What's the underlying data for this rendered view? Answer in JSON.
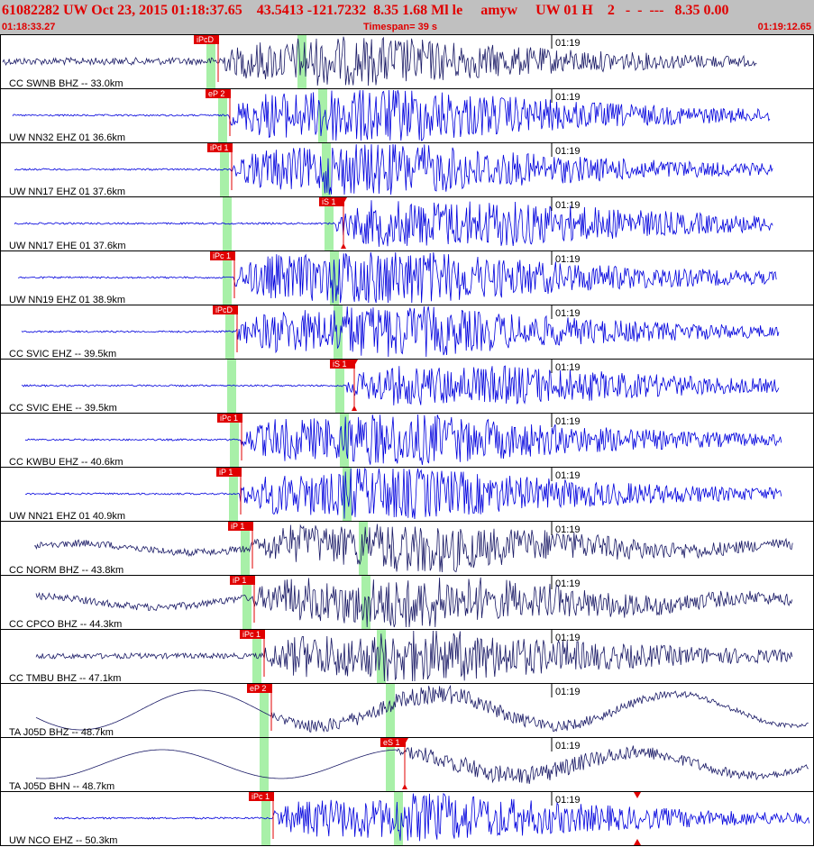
{
  "header": {
    "line1": "61082282 UW Oct 23, 2015 01:18:37.65    43.5413 -121.7232  8.35 1.68 Ml le     amyw     UW 01 H    2   -  -  ---   8.35 0.00",
    "start_time": "01:18:33.27",
    "timespan": "Timespan=  39 s",
    "end_time": "01:19:12.65"
  },
  "tick_label": "01:19",
  "colors": {
    "pick": "#e00000",
    "green_band": "#a8f0a8",
    "trace_blue": "#0000dd",
    "trace_navy": "#1a1a66"
  },
  "traces": [
    {
      "label": "CC SWNB BHZ -- 33.0km",
      "pick": "iPcD",
      "color": "navy",
      "p": 229,
      "s": 330,
      "xs": 3,
      "xe": 840,
      "amp": 22,
      "pre": 4,
      "lf": 0
    },
    {
      "label": "UW NN32 EHZ 01 36.6km",
      "pick": "eP 2",
      "color": "blue",
      "p": 242,
      "s": 353,
      "xs": 14,
      "xe": 855,
      "amp": 26,
      "pre": 1,
      "lf": 0
    },
    {
      "label": "UW NN17 EHZ 01 37.6km",
      "pick": "iPd 1",
      "color": "blue",
      "p": 244,
      "s": 357,
      "xs": 16,
      "xe": 858,
      "amp": 24,
      "pre": 1,
      "lf": 0
    },
    {
      "label": "UW NN17 EHE 01 37.6km",
      "pick": "iS 1",
      "color": "blue",
      "p": 247,
      "s": 360,
      "xs": 16,
      "xe": 858,
      "amp": 26,
      "pre": 1,
      "lf": 0,
      "spick": true
    },
    {
      "label": "UW NN19 EHZ 01 38.9km",
      "pick": "iPc 1",
      "color": "blue",
      "p": 247,
      "s": 366,
      "xs": 20,
      "xe": 862,
      "amp": 26,
      "pre": 1,
      "lf": 0
    },
    {
      "label": "CC SVIC EHZ -- 39.5km",
      "pick": "iPcD",
      "color": "blue",
      "p": 250,
      "s": 370,
      "xs": 24,
      "xe": 865,
      "amp": 24,
      "pre": 1,
      "lf": 0
    },
    {
      "label": "CC SVIC EHE -- 39.5km",
      "pick": "iS 1",
      "color": "blue",
      "p": 252,
      "s": 372,
      "xs": 24,
      "xe": 865,
      "amp": 22,
      "pre": 1,
      "lf": 0,
      "spick": true
    },
    {
      "label": "CC KWBU EHZ -- 40.6km",
      "pick": "iPc 1",
      "color": "blue",
      "p": 255,
      "s": 377,
      "xs": 28,
      "xe": 868,
      "amp": 24,
      "pre": 1,
      "lf": 0
    },
    {
      "label": "UW NN21 EHZ 01 40.9km",
      "pick": "iP 1",
      "color": "blue",
      "p": 254,
      "s": 380,
      "xs": 28,
      "xe": 868,
      "amp": 24,
      "pre": 1,
      "lf": 0
    },
    {
      "label": "CC NORM BHZ -- 43.8km",
      "pick": "iP 1",
      "color": "navy",
      "p": 267,
      "s": 398,
      "xs": 38,
      "xe": 880,
      "amp": 22,
      "pre": 4,
      "lf": 5
    },
    {
      "label": "CC CPCO BHZ -- 44.3km",
      "pick": "iP 1",
      "color": "navy",
      "p": 269,
      "s": 401,
      "xs": 40,
      "xe": 880,
      "amp": 24,
      "pre": 4,
      "lf": 6
    },
    {
      "label": "CC TMBU BHZ -- 47.1km",
      "pick": "iPc 1",
      "color": "navy",
      "p": 280,
      "s": 418,
      "xs": 40,
      "xe": 880,
      "amp": 24,
      "pre": 3,
      "lf": 0
    },
    {
      "label": "TA J05D BHZ -- 48.7km",
      "pick": "eP 2",
      "color": "navy",
      "p": 288,
      "s": 428,
      "xs": 40,
      "xe": 898,
      "amp": 8,
      "pre": 0,
      "lf": 22
    },
    {
      "label": "TA J05D BHN -- 48.7km",
      "pick": "eS 1",
      "color": "navy",
      "p": 288,
      "s": 428,
      "xs": 40,
      "xe": 898,
      "amp": 10,
      "pre": 0,
      "lf": 16,
      "spick": true
    },
    {
      "label": "UW NCO EHZ -- 50.3km",
      "pick": "iPc 1",
      "color": "blue",
      "p": 290,
      "s": 437,
      "xs": 60,
      "xe": 898,
      "amp": 22,
      "pre": 1,
      "lf": 0,
      "extra": true
    }
  ]
}
